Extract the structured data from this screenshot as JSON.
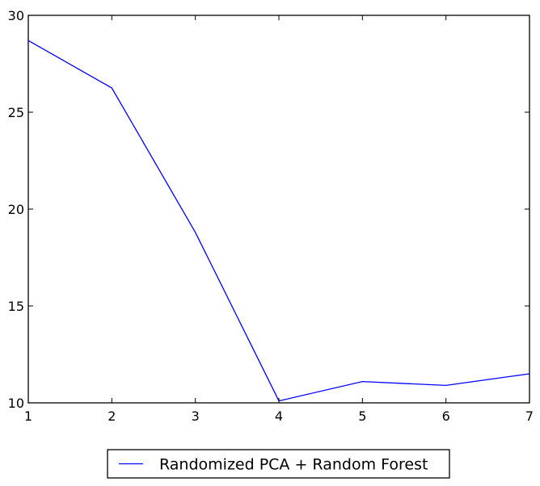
{
  "chart_data": {
    "type": "line",
    "title": "",
    "xlabel": "",
    "ylabel": "",
    "x": [
      1,
      2,
      3,
      4,
      5,
      6,
      7
    ],
    "series": [
      {
        "name": "Randomized PCA + Random Forest",
        "color": "#0000ff",
        "values": [
          28.7,
          26.25,
          18.8,
          10.1,
          11.1,
          10.9,
          11.5
        ]
      }
    ],
    "xlim": [
      1,
      7
    ],
    "ylim": [
      10,
      30
    ],
    "xticks": [
      "1",
      "2",
      "3",
      "4",
      "5",
      "6",
      "7"
    ],
    "yticks": [
      "10",
      "15",
      "20",
      "25",
      "30"
    ],
    "grid": false,
    "legend_position": "bottom-center"
  }
}
